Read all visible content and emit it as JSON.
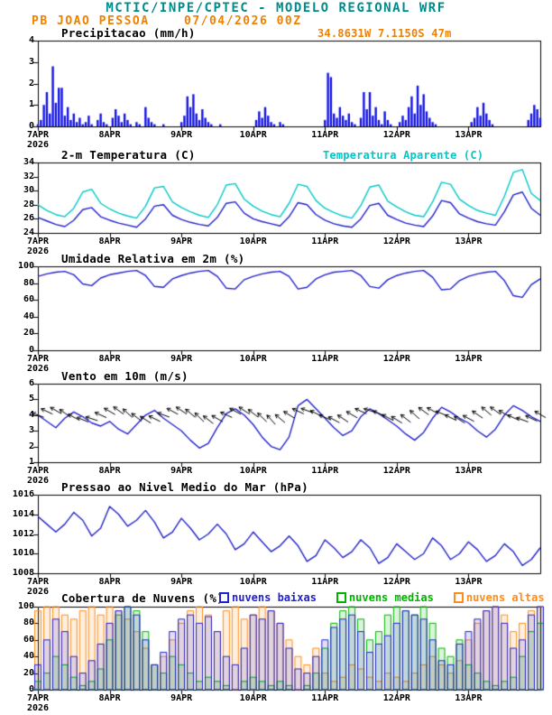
{
  "header": {
    "model_title": "MCTIC/INPE/CPTEC - MODELO REGIONAL WRF",
    "station": "PB JOAO PESSOA",
    "run": "07/04/2026 00Z",
    "location": "34.8631W 7.1150S 47m",
    "colors": {
      "title": "#008b8b",
      "station": "#f08000"
    }
  },
  "x_axis": {
    "tick_hours": [
      0,
      24,
      48,
      72,
      96,
      120,
      144
    ],
    "tick_labels": [
      "7APR",
      "8APR",
      "9APR",
      "10APR",
      "11APR",
      "12APR",
      "13APR"
    ],
    "year_label": "2026",
    "total_hours": 168
  },
  "chart_data": [
    {
      "type": "bar",
      "title": "Precipitacao (mm/h)",
      "ylabel": "mm/h",
      "ylim": [
        0,
        4
      ],
      "yticks": [
        0,
        1,
        2,
        3,
        4
      ],
      "step_hours": 1,
      "color": "#1515e6",
      "values": [
        0.1,
        0.3,
        1.0,
        1.6,
        0.6,
        2.8,
        1.1,
        1.8,
        1.8,
        0.5,
        0.9,
        0.3,
        0.6,
        0.2,
        0.4,
        0.1,
        0.2,
        0.5,
        0.1,
        0,
        0.3,
        0.6,
        0.2,
        0.1,
        0,
        0.4,
        0.8,
        0.5,
        0.2,
        0.6,
        0.3,
        0.1,
        0,
        0.2,
        0.1,
        0,
        0.9,
        0.4,
        0.2,
        0.1,
        0,
        0,
        0.1,
        0,
        0,
        0,
        0,
        0,
        0.2,
        0.5,
        1.4,
        0.9,
        1.5,
        0.6,
        0.3,
        0.8,
        0.4,
        0.2,
        0.1,
        0,
        0,
        0.1,
        0,
        0,
        0,
        0,
        0,
        0,
        0,
        0,
        0,
        0,
        0,
        0.3,
        0.7,
        0.4,
        0.9,
        0.5,
        0.2,
        0.1,
        0,
        0.2,
        0.1,
        0,
        0,
        0,
        0,
        0,
        0,
        0,
        0,
        0,
        0,
        0,
        0,
        0,
        0.3,
        2.5,
        2.3,
        0.6,
        0.4,
        0.9,
        0.5,
        0.3,
        0.6,
        0.2,
        0.1,
        0,
        0.4,
        1.6,
        0.8,
        1.6,
        0.5,
        0.9,
        0.3,
        0.1,
        0.7,
        0.3,
        0.1,
        0,
        0,
        0.2,
        0.5,
        0.3,
        0.9,
        1.4,
        0.6,
        1.9,
        1.0,
        1.5,
        0.7,
        0.4,
        0.2,
        0.1,
        0,
        0,
        0,
        0,
        0,
        0,
        0,
        0,
        0,
        0,
        0,
        0.2,
        0.4,
        0.9,
        0.5,
        1.1,
        0.6,
        0.3,
        0.1,
        0,
        0,
        0,
        0,
        0,
        0,
        0,
        0,
        0,
        0,
        0,
        0.3,
        0.6,
        1.0,
        0.8,
        0.4
      ]
    },
    {
      "type": "line",
      "title": "2-m Temperatura (C)",
      "ylim": [
        24,
        34
      ],
      "yticks": [
        24,
        26,
        28,
        30,
        32,
        34
      ],
      "step_hours": 3,
      "series": [
        {
          "name": "2-m Temperatura (C)",
          "color": "#2222cc",
          "values": [
            26.2,
            25.7,
            25.2,
            24.9,
            25.8,
            27.3,
            27.6,
            26.3,
            25.8,
            25.4,
            25.1,
            24.8,
            26.0,
            27.8,
            28.0,
            26.5,
            25.9,
            25.5,
            25.2,
            25.0,
            26.2,
            28.2,
            28.4,
            26.8,
            26.0,
            25.6,
            25.3,
            25.0,
            26.3,
            28.3,
            28.0,
            26.6,
            25.8,
            25.3,
            25.0,
            24.8,
            26.0,
            27.9,
            28.2,
            26.5,
            25.9,
            25.4,
            25.1,
            24.9,
            26.4,
            28.6,
            28.3,
            26.7,
            26.1,
            25.6,
            25.3,
            25.1,
            27.0,
            29.4,
            29.8,
            27.5,
            26.5
          ]
        },
        {
          "name": "Temperatura Aparente (C)",
          "color": "#00c8c8",
          "values": [
            28.0,
            27.2,
            26.6,
            26.3,
            27.5,
            29.8,
            30.2,
            28.2,
            27.4,
            26.8,
            26.4,
            26.1,
            27.8,
            30.4,
            30.6,
            28.4,
            27.6,
            27.0,
            26.5,
            26.2,
            28.0,
            30.8,
            31.0,
            28.8,
            27.8,
            27.1,
            26.6,
            26.3,
            28.2,
            30.9,
            30.6,
            28.6,
            27.5,
            26.9,
            26.4,
            26.1,
            27.9,
            30.5,
            30.8,
            28.5,
            27.7,
            27.0,
            26.5,
            26.3,
            28.4,
            31.2,
            30.9,
            28.8,
            27.9,
            27.2,
            26.8,
            26.5,
            29.2,
            32.6,
            33.0,
            29.6,
            28.6
          ]
        }
      ]
    },
    {
      "type": "line",
      "title": "Umidade Relativa em 2m (%)",
      "ylim": [
        0,
        100
      ],
      "yticks": [
        0,
        20,
        40,
        60,
        80,
        100
      ],
      "step_hours": 3,
      "series": [
        {
          "name": "Umidade Relativa em 2m (%)",
          "color": "#2222cc",
          "values": [
            88,
            91,
            93,
            94,
            90,
            79,
            77,
            86,
            90,
            92,
            94,
            95,
            89,
            76,
            75,
            85,
            89,
            92,
            94,
            95,
            88,
            74,
            73,
            84,
            88,
            91,
            93,
            94,
            88,
            73,
            75,
            85,
            90,
            93,
            94,
            95,
            89,
            76,
            74,
            84,
            89,
            92,
            94,
            95,
            87,
            72,
            73,
            83,
            88,
            91,
            93,
            94,
            83,
            65,
            63,
            78,
            85
          ]
        }
      ]
    },
    {
      "type": "line",
      "title": "Vento em 10m (m/s)",
      "ylim": [
        1,
        6
      ],
      "yticks": [
        1,
        2,
        3,
        4,
        5,
        6
      ],
      "step_hours": 3,
      "series": [
        {
          "name": "Vento em 10m (m/s)",
          "color": "#2222cc",
          "values": [
            4.0,
            3.6,
            3.2,
            3.8,
            4.2,
            3.9,
            3.5,
            3.3,
            3.6,
            3.1,
            2.8,
            3.4,
            4.0,
            4.3,
            3.8,
            3.4,
            3.0,
            2.4,
            1.9,
            2.2,
            3.2,
            4.1,
            4.4,
            4.0,
            3.4,
            2.6,
            2.0,
            1.8,
            2.6,
            4.6,
            5.0,
            4.4,
            3.8,
            3.2,
            2.7,
            3.0,
            3.9,
            4.4,
            4.1,
            3.7,
            3.3,
            2.8,
            2.4,
            2.9,
            3.8,
            4.5,
            4.2,
            3.8,
            3.5,
            3.0,
            2.6,
            3.1,
            4.0,
            4.6,
            4.3,
            3.9,
            3.6
          ]
        }
      ],
      "barbs": {
        "color": "#000000",
        "y_value": 4,
        "dir_from_deg": [
          110,
          115,
          120,
          125,
          118,
          112,
          108,
          114,
          120,
          126,
          132,
          128,
          122,
          116,
          110,
          118,
          124,
          130,
          135,
          128,
          120,
          114,
          118,
          124,
          128,
          134,
          138,
          130,
          122,
          115,
          110,
          116,
          112,
          118,
          124,
          120,
          114,
          108,
          112,
          118,
          122,
          128,
          132,
          126,
          118,
          112,
          116,
          122,
          118,
          124,
          130,
          126,
          120,
          114,
          110,
          116,
          120
        ]
      }
    },
    {
      "type": "line",
      "title": "Pressao ao Nivel Medio do Mar (hPa)",
      "ylim": [
        1008,
        1016
      ],
      "yticks": [
        1008,
        1010,
        1012,
        1014,
        1016
      ],
      "step_hours": 3,
      "series": [
        {
          "name": "Pressao ao Nivel Medio do Mar (hPa)",
          "color": "#2222cc",
          "values": [
            1013.8,
            1013.0,
            1012.2,
            1013.0,
            1014.2,
            1013.4,
            1011.8,
            1012.6,
            1014.8,
            1014.0,
            1012.8,
            1013.4,
            1014.4,
            1013.2,
            1011.6,
            1012.2,
            1013.6,
            1012.6,
            1011.4,
            1012.0,
            1013.0,
            1012.0,
            1010.4,
            1011.0,
            1012.2,
            1011.2,
            1010.2,
            1010.8,
            1011.8,
            1010.8,
            1009.2,
            1009.8,
            1011.4,
            1010.6,
            1009.6,
            1010.2,
            1011.4,
            1010.6,
            1009.0,
            1009.6,
            1011.0,
            1010.2,
            1009.4,
            1010.0,
            1011.6,
            1010.8,
            1009.4,
            1010.0,
            1011.2,
            1010.4,
            1009.2,
            1009.8,
            1011.0,
            1010.2,
            1008.8,
            1009.4,
            1010.6
          ]
        }
      ]
    },
    {
      "type": "outline-bar",
      "title": "Cobertura de Nuvens (%)",
      "ylim": [
        0,
        100
      ],
      "yticks": [
        0,
        20,
        40,
        60,
        80,
        100
      ],
      "step_hours": 3,
      "series": [
        {
          "name": "nuvens baixas",
          "color": "#2222cc",
          "values": [
            30,
            60,
            85,
            70,
            40,
            20,
            35,
            55,
            80,
            95,
            100,
            90,
            60,
            30,
            45,
            70,
            85,
            90,
            80,
            88,
            70,
            40,
            30,
            50,
            90,
            85,
            95,
            80,
            50,
            25,
            20,
            40,
            60,
            75,
            85,
            90,
            70,
            45,
            55,
            65,
            80,
            95,
            90,
            85,
            60,
            35,
            30,
            55,
            70,
            85,
            95,
            100,
            80,
            50,
            60,
            90,
            100
          ]
        },
        {
          "name": "nuvens medias",
          "color": "#00b400",
          "values": [
            10,
            20,
            40,
            30,
            15,
            5,
            10,
            25,
            60,
            90,
            100,
            95,
            70,
            30,
            20,
            40,
            30,
            20,
            10,
            15,
            10,
            5,
            0,
            10,
            15,
            10,
            5,
            10,
            5,
            0,
            5,
            20,
            50,
            80,
            95,
            100,
            85,
            60,
            70,
            90,
            100,
            95,
            90,
            100,
            80,
            50,
            40,
            60,
            30,
            20,
            10,
            5,
            10,
            15,
            40,
            70,
            80
          ]
        },
        {
          "name": "nuvens altas",
          "color": "#ff8c1a",
          "values": [
            95,
            100,
            100,
            90,
            85,
            95,
            100,
            90,
            100,
            95,
            85,
            70,
            50,
            30,
            40,
            60,
            80,
            95,
            100,
            90,
            70,
            95,
            100,
            85,
            90,
            100,
            95,
            80,
            60,
            40,
            30,
            50,
            20,
            10,
            15,
            30,
            25,
            15,
            10,
            20,
            15,
            10,
            20,
            30,
            40,
            30,
            20,
            35,
            60,
            80,
            95,
            100,
            90,
            70,
            80,
            95,
            100
          ]
        }
      ]
    }
  ]
}
